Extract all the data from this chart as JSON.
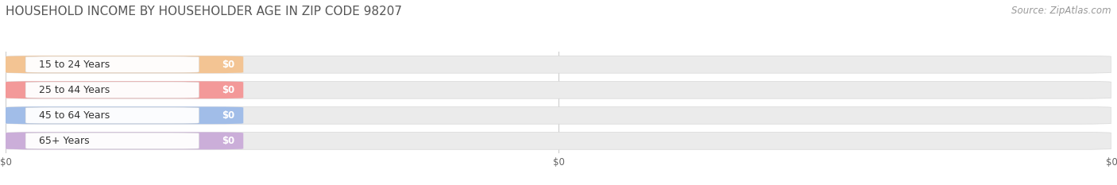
{
  "title": "HOUSEHOLD INCOME BY HOUSEHOLDER AGE IN ZIP CODE 98207",
  "source": "Source: ZipAtlas.com",
  "categories": [
    "15 to 24 Years",
    "25 to 44 Years",
    "45 to 64 Years",
    "65+ Years"
  ],
  "values": [
    0,
    0,
    0,
    0
  ],
  "bar_colors": [
    "#f5c08a",
    "#f59090",
    "#99b8e8",
    "#c8a8d8"
  ],
  "background_color": "#ffffff",
  "row_bg_color": "#ebebeb",
  "title_fontsize": 11,
  "source_fontsize": 8.5,
  "x_tick_labels": [
    "$0",
    "$0",
    "$0"
  ],
  "x_tick_positions": [
    0.0,
    0.5,
    1.0
  ]
}
